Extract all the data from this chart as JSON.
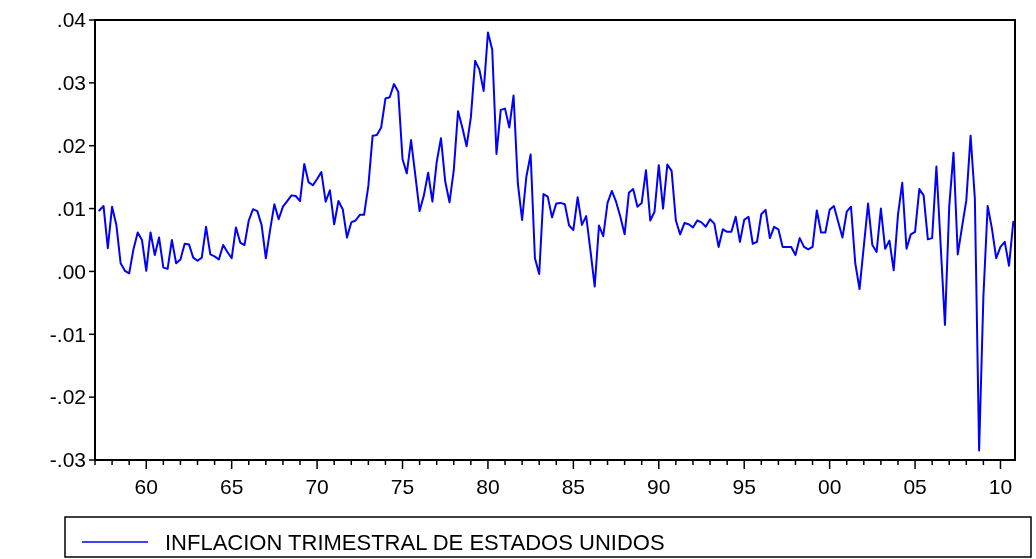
{
  "chart_data": {
    "type": "line",
    "x": [
      1957.25,
      1957.5,
      1957.75,
      1958,
      1958.25,
      1958.5,
      1958.75,
      1959,
      1959.25,
      1959.5,
      1959.75,
      1960,
      1960.25,
      1960.5,
      1960.75,
      1961,
      1961.25,
      1961.5,
      1961.75,
      1962,
      1962.25,
      1962.5,
      1962.75,
      1963,
      1963.25,
      1963.5,
      1963.75,
      1964,
      1964.25,
      1964.5,
      1964.75,
      1965,
      1965.25,
      1965.5,
      1965.75,
      1966,
      1966.25,
      1966.5,
      1966.75,
      1967,
      1967.25,
      1967.5,
      1967.75,
      1968,
      1968.25,
      1968.5,
      1968.75,
      1969,
      1969.25,
      1969.5,
      1969.75,
      1970,
      1970.25,
      1970.5,
      1970.75,
      1971,
      1971.25,
      1971.5,
      1971.75,
      1972,
      1972.25,
      1972.5,
      1972.75,
      1973,
      1973.25,
      1973.5,
      1973.75,
      1974,
      1974.25,
      1974.5,
      1974.75,
      1975,
      1975.25,
      1975.5,
      1975.75,
      1976,
      1976.25,
      1976.5,
      1976.75,
      1977,
      1977.25,
      1977.5,
      1977.75,
      1978,
      1978.25,
      1978.5,
      1978.75,
      1979,
      1979.25,
      1979.5,
      1979.75,
      1980,
      1980.25,
      1980.5,
      1980.75,
      1981,
      1981.25,
      1981.5,
      1981.75,
      1982,
      1982.25,
      1982.5,
      1982.75,
      1983,
      1983.25,
      1983.5,
      1983.75,
      1984,
      1984.25,
      1984.5,
      1984.75,
      1985,
      1985.25,
      1985.5,
      1985.75,
      1986,
      1986.25,
      1986.5,
      1986.75,
      1987,
      1987.25,
      1987.5,
      1987.75,
      1988,
      1988.25,
      1988.5,
      1988.75,
      1989,
      1989.25,
      1989.5,
      1989.75,
      1990,
      1990.25,
      1990.5,
      1990.75,
      1991,
      1991.25,
      1991.5,
      1991.75,
      1992,
      1992.25,
      1992.5,
      1992.75,
      1993,
      1993.25,
      1993.5,
      1993.75,
      1994,
      1994.25,
      1994.5,
      1994.75,
      1995,
      1995.25,
      1995.5,
      1995.75,
      1996,
      1996.25,
      1996.5,
      1996.75,
      1997,
      1997.25,
      1997.5,
      1997.75,
      1998,
      1998.25,
      1998.5,
      1998.75,
      1999,
      1999.25,
      1999.5,
      1999.75,
      2000,
      2000.25,
      2000.5,
      2000.75,
      2001,
      2001.25,
      2001.5,
      2001.75,
      2002,
      2002.25,
      2002.5,
      2002.75,
      2003,
      2003.25,
      2003.5,
      2003.75,
      2004,
      2004.25,
      2004.5,
      2004.75,
      2005,
      2005.25,
      2005.5,
      2005.75,
      2006,
      2006.25,
      2006.5,
      2006.75,
      2007,
      2007.25,
      2007.5,
      2007.75,
      2008,
      2008.25,
      2008.5,
      2008.75,
      2009,
      2009.25,
      2009.5,
      2009.75,
      2010,
      2010.25,
      2010.5,
      2010.75
    ],
    "series": [
      {
        "name": "INFLACION TRIMESTRAL DE ESTADOS UNIDOS",
        "color": "#0000ff",
        "values": [
          0.0097,
          0.0104,
          0.0037,
          0.0103,
          0.0074,
          0.0013,
          0.0001,
          -0.0003,
          0.0035,
          0.0062,
          0.005,
          0.0001,
          0.0062,
          0.0026,
          0.0054,
          0.0006,
          0.0004,
          0.005,
          0.0013,
          0.0019,
          0.0044,
          0.0043,
          0.0022,
          0.0017,
          0.0022,
          0.0071,
          0.0027,
          0.0024,
          0.0019,
          0.0042,
          0.0031,
          0.0021,
          0.007,
          0.0046,
          0.0042,
          0.0081,
          0.0099,
          0.0096,
          0.0074,
          0.0021,
          0.0066,
          0.0107,
          0.0083,
          0.0103,
          0.0112,
          0.0121,
          0.012,
          0.0112,
          0.0171,
          0.0142,
          0.0137,
          0.0147,
          0.0158,
          0.0111,
          0.0129,
          0.0075,
          0.0112,
          0.0099,
          0.0054,
          0.0078,
          0.0081,
          0.009,
          0.009,
          0.0136,
          0.0216,
          0.0217,
          0.0229,
          0.0275,
          0.0277,
          0.0298,
          0.0286,
          0.0179,
          0.0156,
          0.0209,
          0.0153,
          0.0096,
          0.0121,
          0.0157,
          0.0111,
          0.0174,
          0.0212,
          0.0143,
          0.011,
          0.0161,
          0.0255,
          0.0229,
          0.0199,
          0.0245,
          0.0335,
          0.0321,
          0.0287,
          0.038,
          0.0353,
          0.0187,
          0.0257,
          0.0259,
          0.0229,
          0.028,
          0.014,
          0.0082,
          0.0151,
          0.0186,
          0.0021,
          -0.0004,
          0.0123,
          0.0119,
          0.0086,
          0.0108,
          0.0109,
          0.0107,
          0.0073,
          0.0066,
          0.0118,
          0.0074,
          0.0088,
          0.0033,
          -0.0024,
          0.0073,
          0.0056,
          0.0109,
          0.0128,
          0.0111,
          0.0087,
          0.0059,
          0.0125,
          0.0131,
          0.0103,
          0.0109,
          0.0161,
          0.0081,
          0.0095,
          0.0169,
          0.01,
          0.017,
          0.016,
          0.0081,
          0.0059,
          0.0077,
          0.0075,
          0.007,
          0.0081,
          0.0078,
          0.0071,
          0.0083,
          0.0076,
          0.0039,
          0.0067,
          0.0063,
          0.0063,
          0.0087,
          0.0047,
          0.0082,
          0.0087,
          0.0044,
          0.0047,
          0.0091,
          0.0098,
          0.0053,
          0.0071,
          0.0067,
          0.0039,
          0.0039,
          0.0039,
          0.0026,
          0.0053,
          0.0039,
          0.0035,
          0.0039,
          0.0097,
          0.0062,
          0.0062,
          0.0098,
          0.0104,
          0.0079,
          0.0054,
          0.0095,
          0.0103,
          0.0013,
          -0.0028,
          0.004,
          0.0108,
          0.0042,
          0.0031,
          0.01,
          0.0036,
          0.0049,
          0.0002,
          0.009,
          0.0141,
          0.0036,
          0.0059,
          0.0063,
          0.0131,
          0.0121,
          0.0051,
          0.0053,
          0.0167,
          0.0041,
          -0.0085,
          0.0103,
          0.0189,
          0.0027,
          0.0071,
          0.0113,
          0.0216,
          0.0116,
          -0.0285,
          -0.004,
          0.0104,
          0.0068,
          0.0021,
          0.0039,
          0.0047,
          0.0009,
          0.0079
        ]
      }
    ],
    "xlim": [
      1957,
      2010.85
    ],
    "xticks": [
      {
        "value": 1957,
        "label": null
      },
      {
        "value": 1958,
        "label": null
      },
      {
        "value": 1959,
        "label": null
      },
      {
        "value": 1960,
        "label": "60"
      },
      {
        "value": 1961,
        "label": null
      },
      {
        "value": 1962,
        "label": null
      },
      {
        "value": 1963,
        "label": null
      },
      {
        "value": 1964,
        "label": null
      },
      {
        "value": 1965,
        "label": "65"
      },
      {
        "value": 1966,
        "label": null
      },
      {
        "value": 1967,
        "label": null
      },
      {
        "value": 1968,
        "label": null
      },
      {
        "value": 1969,
        "label": null
      },
      {
        "value": 1970,
        "label": "70"
      },
      {
        "value": 1971,
        "label": null
      },
      {
        "value": 1972,
        "label": null
      },
      {
        "value": 1973,
        "label": null
      },
      {
        "value": 1974,
        "label": null
      },
      {
        "value": 1975,
        "label": "75"
      },
      {
        "value": 1976,
        "label": null
      },
      {
        "value": 1977,
        "label": null
      },
      {
        "value": 1978,
        "label": null
      },
      {
        "value": 1979,
        "label": null
      },
      {
        "value": 1980,
        "label": "80"
      },
      {
        "value": 1981,
        "label": null
      },
      {
        "value": 1982,
        "label": null
      },
      {
        "value": 1983,
        "label": null
      },
      {
        "value": 1984,
        "label": null
      },
      {
        "value": 1985,
        "label": "85"
      },
      {
        "value": 1986,
        "label": null
      },
      {
        "value": 1987,
        "label": null
      },
      {
        "value": 1988,
        "label": null
      },
      {
        "value": 1989,
        "label": null
      },
      {
        "value": 1990,
        "label": "90"
      },
      {
        "value": 1991,
        "label": null
      },
      {
        "value": 1992,
        "label": null
      },
      {
        "value": 1993,
        "label": null
      },
      {
        "value": 1994,
        "label": null
      },
      {
        "value": 1995,
        "label": "95"
      },
      {
        "value": 1996,
        "label": null
      },
      {
        "value": 1997,
        "label": null
      },
      {
        "value": 1998,
        "label": null
      },
      {
        "value": 1999,
        "label": null
      },
      {
        "value": 2000,
        "label": "00"
      },
      {
        "value": 2001,
        "label": null
      },
      {
        "value": 2002,
        "label": null
      },
      {
        "value": 2003,
        "label": null
      },
      {
        "value": 2004,
        "label": null
      },
      {
        "value": 2005,
        "label": "05"
      },
      {
        "value": 2006,
        "label": null
      },
      {
        "value": 2007,
        "label": null
      },
      {
        "value": 2008,
        "label": null
      },
      {
        "value": 2009,
        "label": null
      },
      {
        "value": 2010,
        "label": "10"
      }
    ],
    "ylim": [
      -0.03,
      0.04
    ],
    "yticks": [
      {
        "value": -0.03,
        "label": "-.03"
      },
      {
        "value": -0.02,
        "label": "-.02"
      },
      {
        "value": -0.01,
        "label": "-.01"
      },
      {
        "value": 0,
        "label": ".00"
      },
      {
        "value": 0.01,
        "label": ".01"
      },
      {
        "value": 0.02,
        "label": ".02"
      },
      {
        "value": 0.03,
        "label": ".03"
      },
      {
        "value": 0.04,
        "label": ".04"
      }
    ],
    "legend": "bottom"
  }
}
